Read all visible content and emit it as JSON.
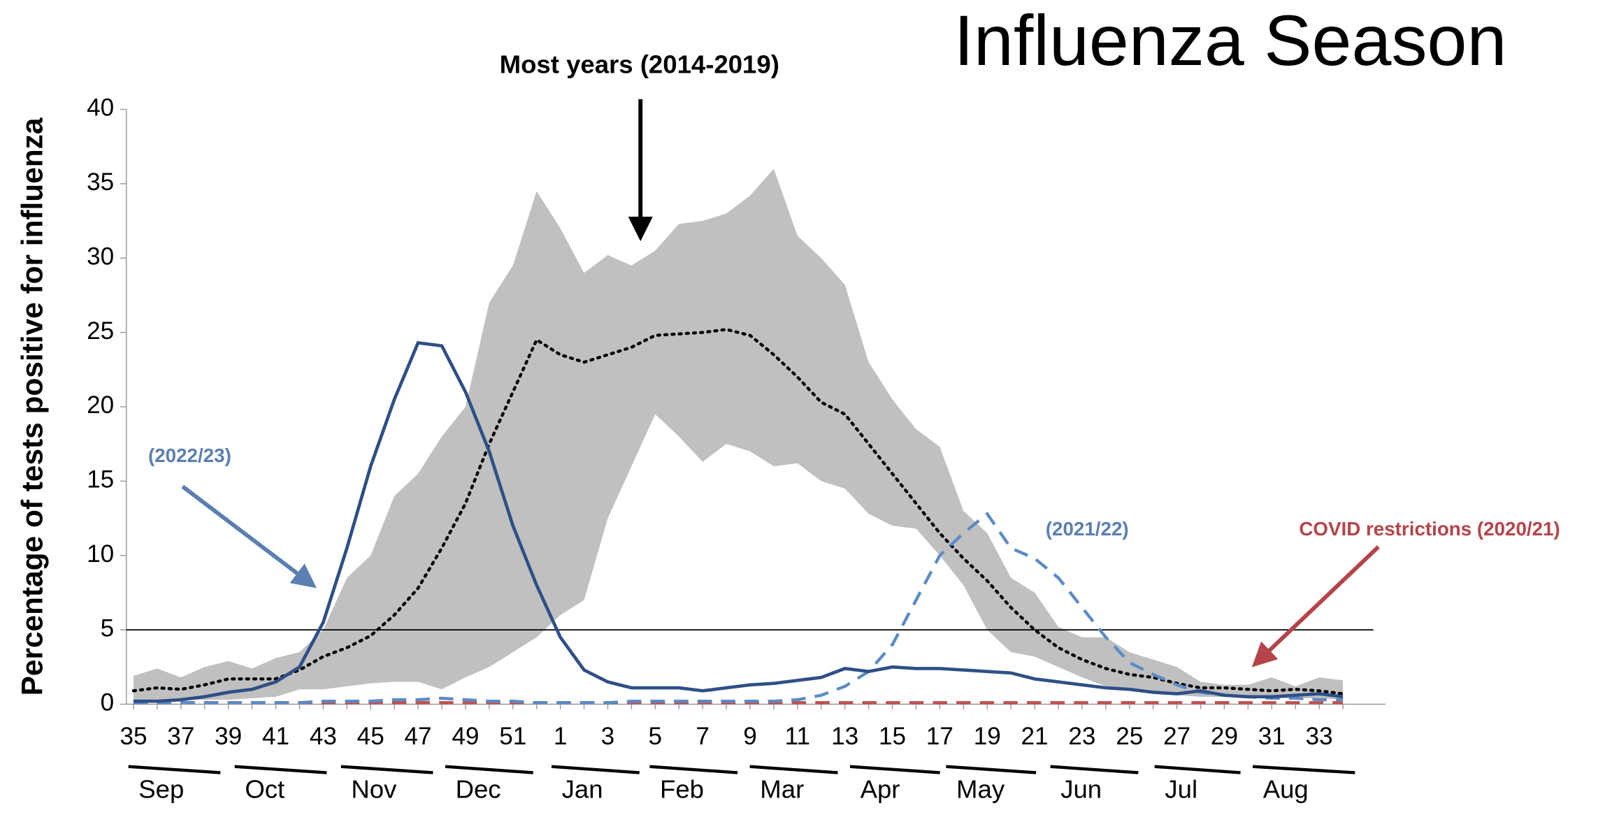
{
  "chart_data": {
    "type": "line",
    "title": "Influenza Season",
    "y_label": "Percentage of tests positive for influenza",
    "categories": [
      "35",
      null,
      "37",
      null,
      "39",
      null,
      "41",
      null,
      "43",
      null,
      "45",
      null,
      "47",
      null,
      "49",
      null,
      "51",
      null,
      "1",
      null,
      "3",
      null,
      "5",
      null,
      "7",
      null,
      "9",
      null,
      "11",
      null,
      "13",
      null,
      "15",
      null,
      "17",
      null,
      "19",
      null,
      "21",
      null,
      "23",
      null,
      "25",
      null,
      "27",
      null,
      "29",
      null,
      "31",
      null,
      "33",
      null
    ],
    "months": [
      "Sep",
      "Oct",
      "Nov",
      "Dec",
      "Jan",
      "Feb",
      "Mar",
      "Apr",
      "May",
      "Jun",
      "Jul",
      "Aug"
    ],
    "ylim": [
      0,
      40
    ],
    "yticks": [
      0,
      5,
      10,
      15,
      20,
      25,
      30,
      35,
      40
    ],
    "threshold": 5,
    "range": {
      "color": "#c0c0c0",
      "upper": [
        1.9,
        2.4,
        1.8,
        2.5,
        2.9,
        2.4,
        3.1,
        3.5,
        5,
        8.5,
        10,
        14,
        15.5,
        18,
        20,
        27,
        29.5,
        34.5,
        32,
        29,
        30.2,
        29.5,
        30.5,
        32.3,
        32.5,
        33,
        34.2,
        36,
        31.5,
        30,
        28.2,
        23,
        20.5,
        18.5,
        17.3,
        13,
        11.5,
        8.5,
        7.5,
        5.2,
        4.5,
        4.5,
        3.5,
        3,
        2.5,
        1.5,
        1.3,
        1.3,
        1.8,
        1.2,
        1.8,
        1.6
      ],
      "lower": [
        0.3,
        0.3,
        0.3,
        0.3,
        0.3,
        0.4,
        0.5,
        1,
        1,
        1.2,
        1.4,
        1.5,
        1.5,
        1,
        1.8,
        2.5,
        3.5,
        4.5,
        6,
        7,
        12.5,
        16,
        19.5,
        18,
        16.3,
        17.5,
        17,
        16,
        16.2,
        15,
        14.5,
        12.8,
        12,
        11.8,
        10,
        8,
        5,
        3.5,
        3.2,
        2.5,
        1.8,
        1.2,
        1,
        0.8,
        0.6,
        0.5,
        0.5,
        0.5,
        0.4,
        0.4,
        0.4,
        0.3
      ]
    },
    "series": [
      {
        "style": "dotted",
        "color": "#000000",
        "values": [
          0.9,
          1.1,
          1.0,
          1.3,
          1.7,
          1.7,
          1.7,
          2.3,
          3.2,
          3.8,
          4.6,
          6,
          7.8,
          10.5,
          13.5,
          17.5,
          21,
          24.5,
          23.5,
          23,
          23.5,
          24,
          24.8,
          24.9,
          25,
          25.2,
          24.8,
          23.5,
          22,
          20.3,
          19.5,
          17.5,
          15.5,
          13.5,
          11.5,
          9.8,
          8.3,
          6.5,
          5,
          3.8,
          3,
          2.4,
          2,
          1.8,
          1.4,
          1.1,
          1.1,
          1,
          0.9,
          1,
          0.9,
          0.7
        ]
      },
      {
        "style": "dashed",
        "color": "#c0504d",
        "values": [
          0.1,
          0.1,
          0.1,
          0.1,
          0.1,
          0.1,
          0.1,
          0.1,
          0.1,
          0.1,
          0.1,
          0.1,
          0.1,
          0.1,
          0.1,
          0.1,
          0.1,
          0.1,
          0.1,
          0.1,
          0.1,
          0.1,
          0.1,
          0.1,
          0.1,
          0.1,
          0.1,
          0.1,
          0.1,
          0.1,
          0.1,
          0.1,
          0.1,
          0.1,
          0.1,
          0.1,
          0.1,
          0.1,
          0.1,
          0.1,
          0.1,
          0.1,
          0.1,
          0.1,
          0.1,
          0.1,
          0.1,
          0.1,
          0.1,
          0.1,
          0.1,
          0.1
        ]
      },
      {
        "style": "dashed",
        "color": "#5b8bc5",
        "values": [
          0.1,
          0.1,
          0.1,
          0.1,
          0.1,
          0.1,
          0.1,
          0.1,
          0.2,
          0.2,
          0.2,
          0.3,
          0.3,
          0.4,
          0.3,
          0.2,
          0.2,
          0.1,
          0.1,
          0.1,
          0.1,
          0.2,
          0.2,
          0.2,
          0.2,
          0.2,
          0.2,
          0.2,
          0.3,
          0.6,
          1.2,
          2.2,
          4,
          7,
          10,
          11.5,
          12.8,
          10.5,
          9.8,
          8.5,
          6.5,
          4.5,
          2.8,
          2,
          1.3,
          0.8,
          0.6,
          0.5,
          0.4,
          0.4,
          0.3,
          0.3
        ]
      },
      {
        "style": "solid",
        "color": "#2e4f86",
        "values": [
          0.2,
          0.2,
          0.3,
          0.5,
          0.8,
          1,
          1.5,
          2.5,
          5.5,
          10.5,
          16,
          20.5,
          24.3,
          24.1,
          21,
          17,
          12,
          8,
          4.5,
          2.3,
          1.5,
          1.1,
          1.1,
          1.1,
          0.9,
          1.1,
          1.3,
          1.4,
          1.6,
          1.8,
          2.4,
          2.2,
          2.5,
          2.4,
          2.4,
          2.3,
          2.2,
          2.1,
          1.7,
          1.5,
          1.3,
          1.1,
          1,
          0.8,
          0.7,
          0.9,
          0.6,
          0.5,
          0.5,
          0.6,
          0.7,
          0.5
        ]
      }
    ],
    "annotations": [
      {
        "text": "Most years (2014-2019)",
        "color": "#000000"
      },
      {
        "text": "(2022/23)",
        "color": "#5b7fb0"
      },
      {
        "text": "(2021/22)",
        "color": "#5b7fb0"
      },
      {
        "text": "COVID restrictions (2020/21)",
        "color": "#b5434a"
      }
    ]
  }
}
